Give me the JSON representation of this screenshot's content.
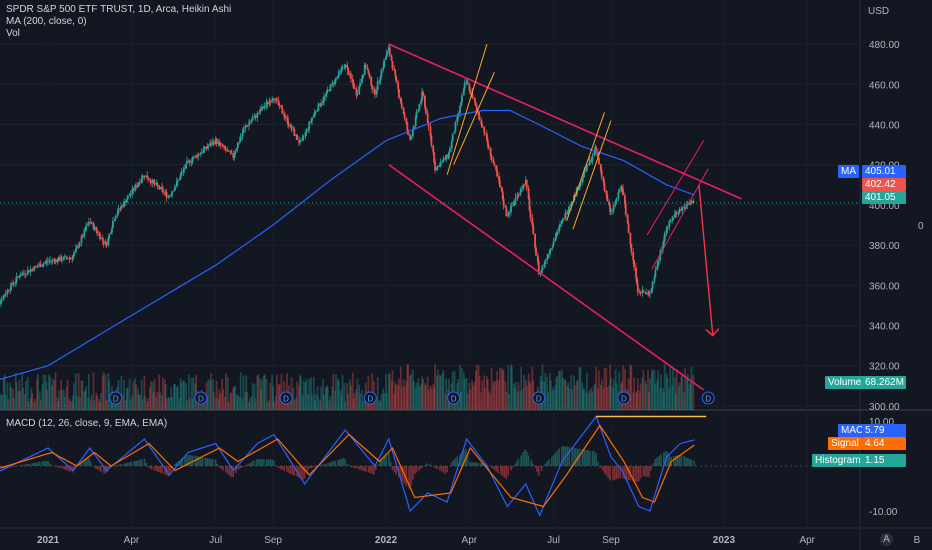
{
  "legend": {
    "title": "SPDR S&P 500 ETF TRUST, 1D, Arca, Heikin Ashi",
    "ma": "MA (200, close, 0)",
    "vol": "Vol",
    "macd": "MACD (12, 26, close, 9, EMA, EMA)"
  },
  "currency": "USD",
  "zero_label": "0",
  "tags": {
    "ma_name": "MA",
    "ma_value": "405.01",
    "last_value": "402.42",
    "prev_value": "401.05",
    "volume_name": "Volume",
    "volume_value": "68.262M",
    "macd_name": "MACD",
    "macd_value": "5.79",
    "signal_name": "Signal",
    "signal_value": "4.64",
    "hist_name": "Histogram",
    "hist_value": "1.15"
  },
  "controls": {
    "auto": "A",
    "badge_label": "D"
  },
  "colors": {
    "background": "#131722",
    "up": "#26a69a",
    "down": "#ef5350",
    "ma": "#2962ff",
    "macd": "#2962ff",
    "signal": "#ff6d00",
    "channel": "#e91e63",
    "flag": "#ffa726",
    "arrow": "#f23645",
    "resistance": "#ffb74d"
  },
  "chart_data": [
    {
      "type": "candlestick",
      "title": "SPDR S&P 500 ETF TRUST, 1D, Arca, Heikin Ashi",
      "ylabel": "USD",
      "ylim": [
        295,
        492
      ],
      "y_ticks": [
        300,
        320,
        340,
        360,
        380,
        400,
        420,
        440,
        460,
        480
      ],
      "y_tick_labels": [
        "300.00",
        "320.00",
        "340.00",
        "360.00",
        "380.00",
        "400.00",
        "420.00",
        "440.00",
        "460.00",
        "480.00"
      ],
      "x_ticks": [
        "2021",
        "Apr",
        "Jul",
        "Sep",
        "2022",
        "Apr",
        "Jul",
        "Sep",
        "2023",
        "Apr",
        "B"
      ],
      "dividend_markers": [
        "2021-03",
        "2021-06",
        "2021-09",
        "2021-12",
        "2022-03",
        "2022-06",
        "2022-09",
        "2022-12"
      ],
      "price_path": [
        [
          "2020-11-01",
          338
        ],
        [
          "2020-11-10",
          352
        ],
        [
          "2020-12-01",
          365
        ],
        [
          "2021-01-01",
          372
        ],
        [
          "2021-01-28",
          374
        ],
        [
          "2021-02-15",
          392
        ],
        [
          "2021-03-05",
          380
        ],
        [
          "2021-03-15",
          395
        ],
        [
          "2021-04-15",
          415
        ],
        [
          "2021-05-12",
          404
        ],
        [
          "2021-06-01",
          421
        ],
        [
          "2021-07-01",
          432
        ],
        [
          "2021-07-20",
          424
        ],
        [
          "2021-08-01",
          438
        ],
        [
          "2021-09-02",
          454
        ],
        [
          "2021-10-01",
          430
        ],
        [
          "2021-10-15",
          445
        ],
        [
          "2021-11-18",
          470
        ],
        [
          "2021-12-01",
          455
        ],
        [
          "2021-12-10",
          470
        ],
        [
          "2021-12-20",
          455
        ],
        [
          "2022-01-04",
          478
        ],
        [
          "2022-01-27",
          432
        ],
        [
          "2022-02-10",
          456
        ],
        [
          "2022-02-24",
          418
        ],
        [
          "2022-03-10",
          425
        ],
        [
          "2022-03-29",
          462
        ],
        [
          "2022-04-15",
          440
        ],
        [
          "2022-05-01",
          415
        ],
        [
          "2022-05-12",
          395
        ],
        [
          "2022-06-01",
          412
        ],
        [
          "2022-06-16",
          365
        ],
        [
          "2022-07-01",
          382
        ],
        [
          "2022-08-16",
          428
        ],
        [
          "2022-09-01",
          395
        ],
        [
          "2022-09-13",
          410
        ],
        [
          "2022-09-30",
          358
        ],
        [
          "2022-10-13",
          355
        ],
        [
          "2022-10-31",
          388
        ],
        [
          "2022-11-10",
          396
        ],
        [
          "2022-11-30",
          402
        ]
      ],
      "ma": {
        "name": "MA (200, close, 0)",
        "points": [
          [
            "2020-11-01",
            312
          ],
          [
            "2021-01-01",
            320
          ],
          [
            "2021-04-01",
            345
          ],
          [
            "2021-07-01",
            370
          ],
          [
            "2021-09-01",
            390
          ],
          [
            "2021-11-01",
            412
          ],
          [
            "2022-01-01",
            432
          ],
          [
            "2022-03-01",
            443
          ],
          [
            "2022-04-15",
            447
          ],
          [
            "2022-05-15",
            447
          ],
          [
            "2022-06-15",
            440
          ],
          [
            "2022-08-01",
            429
          ],
          [
            "2022-09-15",
            422
          ],
          [
            "2022-10-31",
            410
          ],
          [
            "2022-11-30",
            405
          ]
        ],
        "last": 405.01
      },
      "last_price": 402.42,
      "previous_close": 401.05,
      "volume_last": "68.262M",
      "annotations": {
        "descending_channel_upper": [
          [
            "2022-01-04",
            480
          ],
          [
            "2023-01-20",
            403
          ]
        ],
        "descending_channel_lower": [
          [
            "2022-01-04",
            420
          ],
          [
            "2022-12-10",
            308
          ]
        ],
        "bear_flags": [
          [
            [
              "2022-03-08",
              415
            ],
            [
              "2022-04-20",
              480
            ]
          ],
          [
            [
              "2022-03-15",
              420
            ],
            [
              "2022-04-28",
              466
            ]
          ],
          [
            [
              "2022-07-15",
              392
            ],
            [
              "2022-08-25",
              446
            ]
          ],
          [
            [
              "2022-07-22",
              388
            ],
            [
              "2022-09-01",
              442
            ]
          ],
          [
            [
              "2022-10-10",
              385
            ],
            [
              "2022-12-10",
              432
            ]
          ],
          [
            [
              "2022-10-15",
              368
            ],
            [
              "2022-12-15",
              418
            ]
          ]
        ],
        "projection_arrow": [
          [
            "2022-12-05",
            410
          ],
          [
            "2022-12-20",
            335
          ]
        ]
      }
    },
    {
      "type": "line",
      "title": "MACD (12, 26, close, 9, EMA, EMA)",
      "ylim": [
        -12,
        12
      ],
      "y_ticks": [
        -10,
        10
      ],
      "y_tick_labels": [
        "-10.00",
        "10.00"
      ],
      "series": [
        {
          "name": "MACD",
          "points": [
            [
              "2020-11-01",
              -2
            ],
            [
              "2021-01-01",
              4
            ],
            [
              "2021-01-28",
              -1
            ],
            [
              "2021-02-15",
              4
            ],
            [
              "2021-03-05",
              -1
            ],
            [
              "2021-04-15",
              6
            ],
            [
              "2021-05-12",
              -2
            ],
            [
              "2021-06-01",
              3
            ],
            [
              "2021-07-01",
              5
            ],
            [
              "2021-07-20",
              -1
            ],
            [
              "2021-08-15",
              5
            ],
            [
              "2021-09-02",
              7
            ],
            [
              "2021-10-05",
              -4
            ],
            [
              "2021-11-18",
              8
            ],
            [
              "2021-12-20",
              0
            ],
            [
              "2022-01-04",
              6
            ],
            [
              "2022-01-27",
              -10
            ],
            [
              "2022-02-15",
              -6
            ],
            [
              "2022-03-08",
              -8
            ],
            [
              "2022-03-29",
              6
            ],
            [
              "2022-04-20",
              0
            ],
            [
              "2022-05-12",
              -9
            ],
            [
              "2022-06-01",
              -4
            ],
            [
              "2022-06-16",
              -11
            ],
            [
              "2022-07-10",
              1
            ],
            [
              "2022-08-16",
              11
            ],
            [
              "2022-09-01",
              2
            ],
            [
              "2022-09-13",
              -1
            ],
            [
              "2022-10-01",
              -9
            ],
            [
              "2022-10-13",
              -10
            ],
            [
              "2022-10-31",
              2
            ],
            [
              "2022-11-15",
              5
            ],
            [
              "2022-11-30",
              5.79
            ]
          ]
        },
        {
          "name": "Signal",
          "points": [
            [
              "2020-11-01",
              -1
            ],
            [
              "2021-01-05",
              3
            ],
            [
              "2021-02-01",
              0
            ],
            [
              "2021-02-20",
              3
            ],
            [
              "2021-03-10",
              0
            ],
            [
              "2021-04-20",
              5
            ],
            [
              "2021-05-18",
              -1
            ],
            [
              "2021-07-05",
              4
            ],
            [
              "2021-07-25",
              1
            ],
            [
              "2021-09-06",
              6
            ],
            [
              "2021-10-10",
              -2
            ],
            [
              "2021-11-22",
              7
            ],
            [
              "2021-12-25",
              1
            ],
            [
              "2022-01-08",
              4
            ],
            [
              "2022-02-01",
              -7
            ],
            [
              "2022-03-12",
              -6
            ],
            [
              "2022-04-02",
              4
            ],
            [
              "2022-05-16",
              -7
            ],
            [
              "2022-06-20",
              -9
            ],
            [
              "2022-07-15",
              -2
            ],
            [
              "2022-08-20",
              9
            ],
            [
              "2022-09-15",
              1
            ],
            [
              "2022-10-05",
              -7
            ],
            [
              "2022-10-18",
              -8
            ],
            [
              "2022-11-05",
              1
            ],
            [
              "2022-11-30",
              4.64
            ]
          ]
        }
      ],
      "resistance_line": [
        [
          "2022-08-16",
          11
        ],
        [
          "2022-11-30",
          11
        ]
      ],
      "last": {
        "MACD": 5.79,
        "Signal": 4.64,
        "Histogram": 1.15
      }
    }
  ]
}
